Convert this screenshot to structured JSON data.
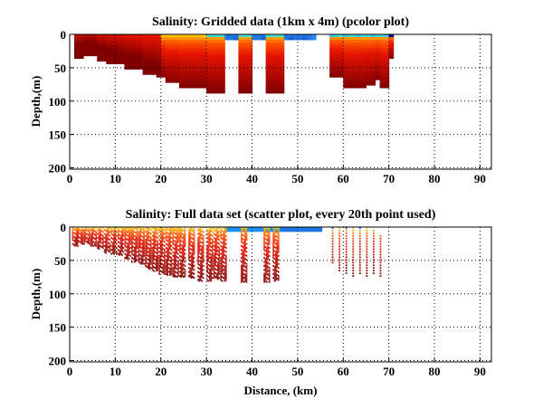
{
  "chart_data": [
    {
      "type": "heatmap",
      "title": "Salinity: Gridded data (1km x 4m) (pcolor plot)",
      "xlabel": "",
      "ylabel": "Depth,(m)",
      "xlim": [
        0,
        92.5
      ],
      "ylim": [
        0,
        202
      ],
      "y_reversed": true,
      "grid": true,
      "xticks": [
        0,
        10,
        20,
        30,
        40,
        50,
        60,
        70,
        80,
        90
      ],
      "yticks": [
        0,
        50,
        100,
        150,
        200
      ],
      "columns": [
        {
          "x0": 1,
          "x1": 3,
          "bottom": 33
        },
        {
          "x0": 3,
          "x1": 6,
          "bottom": 30
        },
        {
          "x0": 6,
          "x1": 8,
          "bottom": 37
        },
        {
          "x0": 8,
          "x1": 10,
          "bottom": 41
        },
        {
          "x0": 10,
          "x1": 12,
          "bottom": 44
        },
        {
          "x0": 12,
          "x1": 14,
          "bottom": 49
        },
        {
          "x0": 14,
          "x1": 16,
          "bottom": 52
        },
        {
          "x0": 16,
          "x1": 19,
          "bottom": 60
        },
        {
          "x0": 19,
          "x1": 21,
          "bottom": 64
        },
        {
          "x0": 21,
          "x1": 24,
          "bottom": 72
        },
        {
          "x0": 24,
          "x1": 30,
          "bottom": 77
        },
        {
          "x0": 30,
          "x1": 34,
          "bottom": 85
        },
        {
          "x0": 34,
          "x1": 37,
          "bottom": 8,
          "surface": true
        },
        {
          "x0": 37,
          "x1": 40,
          "bottom": 85
        },
        {
          "x0": 40,
          "x1": 43,
          "bottom": 8,
          "surface": true
        },
        {
          "x0": 43,
          "x1": 47,
          "bottom": 85
        },
        {
          "x0": 47,
          "x1": 54,
          "bottom": 8,
          "surface": true
        },
        {
          "x0": 57,
          "x1": 60,
          "bottom": 62
        },
        {
          "x0": 60,
          "x1": 65,
          "bottom": 78
        },
        {
          "x0": 65,
          "x1": 67,
          "bottom": 75
        },
        {
          "x0": 67,
          "x1": 68,
          "bottom": 66
        },
        {
          "x0": 68,
          "x1": 70,
          "bottom": 78
        },
        {
          "x0": 70,
          "x1": 71,
          "bottom": 35
        }
      ]
    },
    {
      "type": "scatter",
      "title": "Salinity: Full data set (scatter plot, every 20th point used)",
      "xlabel": "Distance, (km)",
      "ylabel": "Depth,(m)",
      "xlim": [
        0,
        92.5
      ],
      "ylim": [
        0,
        202
      ],
      "y_reversed": true,
      "grid": true,
      "xticks": [
        0,
        10,
        20,
        30,
        40,
        50,
        60,
        70,
        80,
        90
      ],
      "yticks": [
        0,
        50,
        100,
        150,
        200
      ],
      "stations": [
        {
          "x": 0.5,
          "bottom": 28
        },
        {
          "x": 1.5,
          "bottom": 25
        },
        {
          "x": 3,
          "bottom": 25
        },
        {
          "x": 4.5,
          "bottom": 28
        },
        {
          "x": 6,
          "bottom": 33
        },
        {
          "x": 7.5,
          "bottom": 38
        },
        {
          "x": 9,
          "bottom": 40
        },
        {
          "x": 10.5,
          "bottom": 42
        },
        {
          "x": 12,
          "bottom": 48
        },
        {
          "x": 13.5,
          "bottom": 52
        },
        {
          "x": 15,
          "bottom": 55
        },
        {
          "x": 16.5,
          "bottom": 62
        },
        {
          "x": 18,
          "bottom": 65
        },
        {
          "x": 19.5,
          "bottom": 70
        },
        {
          "x": 21,
          "bottom": 72
        },
        {
          "x": 22.5,
          "bottom": 75
        },
        {
          "x": 24,
          "bottom": 75
        },
        {
          "x": 26,
          "bottom": 76
        },
        {
          "x": 28,
          "bottom": 80
        },
        {
          "x": 30,
          "bottom": 80
        },
        {
          "x": 31.5,
          "bottom": 78
        },
        {
          "x": 33,
          "bottom": 80
        },
        {
          "x": 37.5,
          "bottom": 82
        },
        {
          "x": 42.5,
          "bottom": 82
        },
        {
          "x": 44.5,
          "bottom": 80
        },
        {
          "x": 57.5,
          "bottom": 70
        },
        {
          "x": 59,
          "bottom": 74
        },
        {
          "x": 60.5,
          "bottom": 72
        },
        {
          "x": 62,
          "bottom": 74
        },
        {
          "x": 63.5,
          "bottom": 72
        },
        {
          "x": 65,
          "bottom": 74
        },
        {
          "x": 66.5,
          "bottom": 72
        },
        {
          "x": 68,
          "bottom": 74
        },
        {
          "x": 69.5,
          "bottom": 20
        }
      ],
      "surface_band": {
        "x0": 34,
        "x1": 55,
        "bottom": 6
      }
    }
  ],
  "colors": {
    "deep": "#800000",
    "mid": "#e00000",
    "warm": "#ff8000",
    "fresh": "#1e78e6",
    "freshest": "#00008f"
  }
}
